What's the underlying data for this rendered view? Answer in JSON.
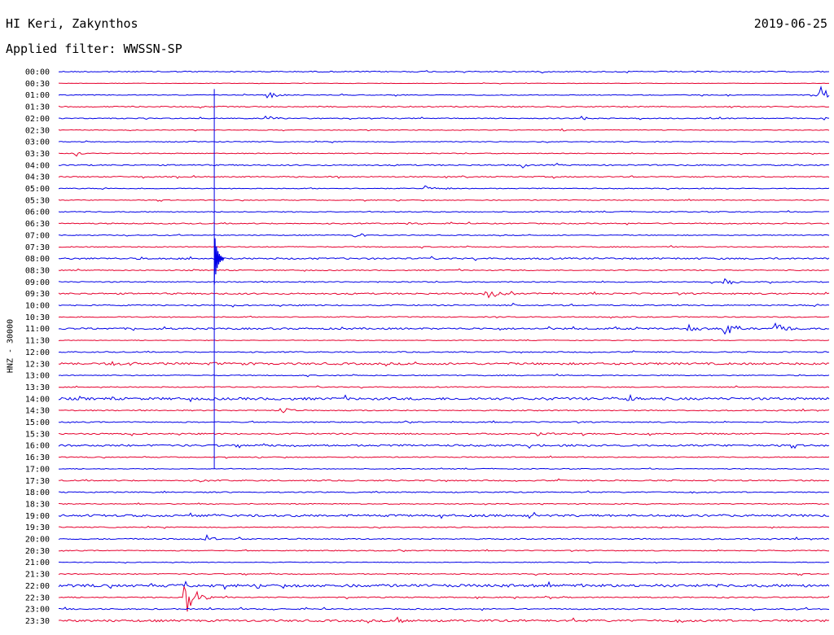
{
  "header": {
    "station": "HI Keri, Zakynthos",
    "date": "2019-06-25",
    "filter": "Applied filter: WWSSN-SP",
    "channel": "HNZ - 30000"
  },
  "colors": {
    "trace_even": "#0000e6",
    "trace_odd": "#e6002e"
  },
  "chart_data": {
    "type": "line",
    "chart_kind": "helicorder",
    "rows": [
      "00:00",
      "00:30",
      "01:00",
      "01:30",
      "02:00",
      "02:30",
      "03:00",
      "03:30",
      "04:00",
      "04:30",
      "05:00",
      "05:30",
      "06:00",
      "06:30",
      "07:00",
      "07:30",
      "08:00",
      "08:30",
      "09:00",
      "09:30",
      "10:00",
      "10:30",
      "11:00",
      "11:30",
      "12:00",
      "12:30",
      "13:00",
      "13:30",
      "14:00",
      "14:30",
      "15:00",
      "15:30",
      "16:00",
      "16:30",
      "17:00",
      "17:30",
      "18:00",
      "18:30",
      "19:00",
      "19:30",
      "20:00",
      "20:30",
      "21:00",
      "21:30",
      "22:00",
      "22:30",
      "23:00",
      "23:30"
    ],
    "noise": [
      0.8,
      0.3,
      0.6,
      0.8,
      0.7,
      0.5,
      0.6,
      0.6,
      0.9,
      0.8,
      0.6,
      0.6,
      0.7,
      0.8,
      0.6,
      0.7,
      1.2,
      0.7,
      0.8,
      1.1,
      0.9,
      0.7,
      1.3,
      0.5,
      0.8,
      1.5,
      0.7,
      0.7,
      1.8,
      0.8,
      0.8,
      1.0,
      1.4,
      0.7,
      0.6,
      0.9,
      0.8,
      0.7,
      1.6,
      0.7,
      0.9,
      0.7,
      0.5,
      0.7,
      2.0,
      0.8,
      0.9,
      1.5
    ],
    "events": [
      {
        "row": 2,
        "t": 0.272,
        "amp": 6,
        "dur": 0.01
      },
      {
        "row": 2,
        "t": 0.99,
        "amp": 11,
        "dur": 0.01
      },
      {
        "row": 4,
        "t": 0.27,
        "amp": 4,
        "dur": 0.008
      },
      {
        "row": 4,
        "t": 0.68,
        "amp": 4,
        "dur": 0.006
      },
      {
        "row": 4,
        "t": 0.995,
        "amp": 3,
        "dur": 0.005
      },
      {
        "row": 5,
        "t": 0.65,
        "amp": 3,
        "dur": 0.008
      },
      {
        "row": 7,
        "t": 0.022,
        "amp": 5,
        "dur": 0.008
      },
      {
        "row": 8,
        "t": 0.6,
        "amp": 4,
        "dur": 0.008
      },
      {
        "row": 10,
        "t": 0.475,
        "amp": 3,
        "dur": 0.02
      },
      {
        "row": 13,
        "t": 0.455,
        "amp": 2,
        "dur": 0.008
      },
      {
        "row": 14,
        "t": 0.385,
        "amp": 3,
        "dur": 0.01
      },
      {
        "row": 19,
        "t": 0.555,
        "amp": 6,
        "dur": 0.015
      },
      {
        "row": 18,
        "t": 0.863,
        "amp": 5,
        "dur": 0.01
      },
      {
        "row": 20,
        "t": 0.59,
        "amp": 3,
        "dur": 0.008
      },
      {
        "row": 22,
        "t": 0.818,
        "amp": 7,
        "dur": 0.01
      },
      {
        "row": 22,
        "t": 0.865,
        "amp": 12,
        "dur": 0.01
      },
      {
        "row": 22,
        "t": 0.93,
        "amp": 7,
        "dur": 0.012
      },
      {
        "row": 25,
        "t": 0.07,
        "amp": 3,
        "dur": 0.02
      },
      {
        "row": 25,
        "t": 0.19,
        "amp": 3,
        "dur": 0.03
      },
      {
        "row": 28,
        "t": 0.74,
        "amp": 8,
        "dur": 0.006
      },
      {
        "row": 29,
        "t": 0.29,
        "amp": 6,
        "dur": 0.008
      },
      {
        "row": 31,
        "t": 0.62,
        "amp": 4,
        "dur": 0.01
      },
      {
        "row": 35,
        "t": 0.185,
        "amp": 3,
        "dur": 0.01
      },
      {
        "row": 40,
        "t": 0.19,
        "amp": 7,
        "dur": 0.008
      },
      {
        "row": 44,
        "t": 0.165,
        "amp": 4,
        "dur": 0.006
      },
      {
        "row": 45,
        "t": 0.164,
        "amp": 26,
        "dur": 0.012
      },
      {
        "row": 47,
        "t": 0.44,
        "amp": 5,
        "dur": 0.008
      }
    ],
    "spike": {
      "t": 0.202,
      "from_row": 1,
      "to_row": 34,
      "peak_row": 16,
      "peak_amp": 32
    }
  }
}
